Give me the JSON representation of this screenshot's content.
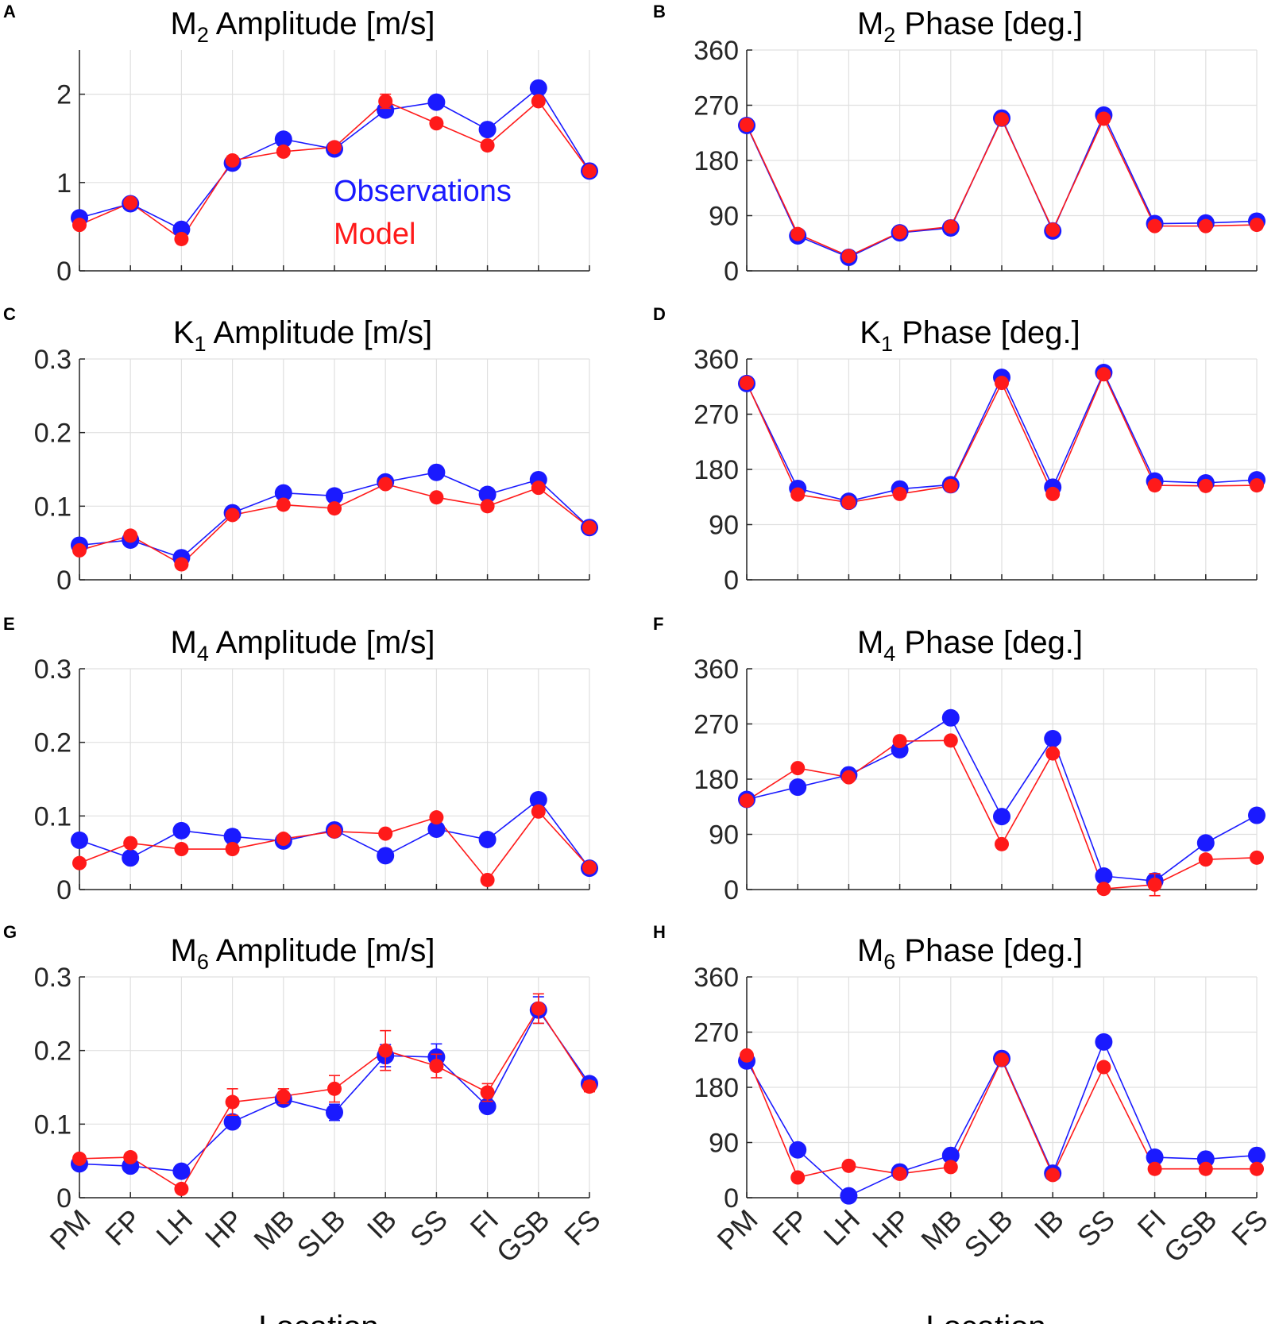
{
  "figure": {
    "legend": {
      "observations_label": "Observations",
      "model_label": "Model"
    },
    "colors": {
      "observations": "#1a1aff",
      "model": "#ff1a1a",
      "grid": "#e0e0e0",
      "axis": "#262626"
    }
  },
  "chart_data": [
    {
      "panel": "A",
      "type": "line",
      "title_main": "M",
      "title_sub": "2",
      "title_rest": " Amplitude [m/s]",
      "categories": [
        "PM",
        "FP",
        "LH",
        "HP",
        "MB",
        "SLB",
        "IB",
        "SS",
        "FI",
        "GSB",
        "FS"
      ],
      "ylim": [
        0,
        2.5
      ],
      "yticks": [
        0,
        1,
        2
      ],
      "ytick_labels": [
        "0",
        "1",
        "2"
      ],
      "xlabel": "",
      "series": [
        {
          "name": "Observations",
          "values": [
            0.6,
            0.76,
            0.47,
            1.22,
            1.49,
            1.38,
            1.82,
            1.91,
            1.6,
            2.07,
            1.13
          ],
          "err": [
            0,
            0,
            0,
            0,
            0,
            0,
            0,
            0,
            0,
            0,
            0
          ]
        },
        {
          "name": "Model",
          "values": [
            0.52,
            0.77,
            0.36,
            1.25,
            1.35,
            1.4,
            1.92,
            1.67,
            1.42,
            1.92,
            1.13
          ],
          "err": [
            0,
            0,
            0,
            0.05,
            0,
            0,
            0.08,
            0,
            0,
            0,
            0
          ]
        }
      ],
      "legend_shown": true
    },
    {
      "panel": "B",
      "type": "line",
      "title_main": "M",
      "title_sub": "2",
      "title_rest": " Phase [deg.]",
      "categories": [
        "PM",
        "FP",
        "LH",
        "HP",
        "MB",
        "SLB",
        "IB",
        "SS",
        "FI",
        "GSB",
        "FS"
      ],
      "ylim": [
        0,
        360
      ],
      "yticks": [
        0,
        90,
        180,
        270,
        360
      ],
      "ytick_labels": [
        "0",
        "90",
        "180",
        "270",
        "360"
      ],
      "xlabel": "",
      "series": [
        {
          "name": "Observations",
          "values": [
            237,
            57,
            22,
            62,
            70,
            249,
            65,
            254,
            77,
            78,
            81
          ],
          "err": [
            0,
            0,
            0,
            0,
            0,
            0,
            0,
            0,
            0,
            0,
            0
          ]
        },
        {
          "name": "Model",
          "values": [
            238,
            60,
            24,
            63,
            72,
            247,
            67,
            248,
            73,
            73,
            75
          ],
          "err": [
            0,
            0,
            0,
            0,
            0,
            0,
            0,
            0,
            0,
            0,
            0
          ]
        }
      ]
    },
    {
      "panel": "C",
      "type": "line",
      "title_main": "K",
      "title_sub": "1",
      "title_rest": " Amplitude [m/s]",
      "categories": [
        "PM",
        "FP",
        "LH",
        "HP",
        "MB",
        "SLB",
        "IB",
        "SS",
        "FI",
        "GSB",
        "FS"
      ],
      "ylim": [
        0,
        0.3
      ],
      "yticks": [
        0,
        0.1,
        0.2,
        0.3
      ],
      "ytick_labels": [
        "0",
        "0.1",
        "0.2",
        "0.3"
      ],
      "xlabel": "",
      "series": [
        {
          "name": "Observations",
          "values": [
            0.047,
            0.054,
            0.03,
            0.091,
            0.118,
            0.114,
            0.133,
            0.146,
            0.116,
            0.136,
            0.071
          ],
          "err": [
            0,
            0,
            0,
            0,
            0,
            0,
            0,
            0,
            0,
            0,
            0
          ]
        },
        {
          "name": "Model",
          "values": [
            0.04,
            0.06,
            0.021,
            0.088,
            0.102,
            0.097,
            0.13,
            0.112,
            0.1,
            0.125,
            0.071
          ],
          "err": [
            0,
            0,
            0,
            0,
            0,
            0,
            0,
            0,
            0,
            0,
            0
          ]
        }
      ]
    },
    {
      "panel": "D",
      "type": "line",
      "title_main": "K",
      "title_sub": "1",
      "title_rest": " Phase [deg.]",
      "categories": [
        "PM",
        "FP",
        "LH",
        "HP",
        "MB",
        "SLB",
        "IB",
        "SS",
        "FI",
        "GSB",
        "FS"
      ],
      "ylim": [
        0,
        360
      ],
      "yticks": [
        0,
        90,
        180,
        270,
        360
      ],
      "ytick_labels": [
        "0",
        "90",
        "180",
        "270",
        "360"
      ],
      "xlabel": "",
      "series": [
        {
          "name": "Observations",
          "values": [
            320,
            149,
            128,
            148,
            155,
            330,
            151,
            338,
            161,
            158,
            163
          ],
          "err": [
            0,
            0,
            0,
            0,
            0,
            0,
            0,
            0,
            0,
            0,
            0
          ]
        },
        {
          "name": "Model",
          "values": [
            321,
            139,
            126,
            140,
            153,
            321,
            140,
            335,
            154,
            153,
            154
          ],
          "err": [
            0,
            0,
            0,
            0,
            0,
            0,
            0,
            0,
            0,
            0,
            0
          ]
        }
      ]
    },
    {
      "panel": "E",
      "type": "line",
      "title_main": "M",
      "title_sub": "4",
      "title_rest": " Amplitude [m/s]",
      "categories": [
        "PM",
        "FP",
        "LH",
        "HP",
        "MB",
        "SLB",
        "IB",
        "SS",
        "FI",
        "GSB",
        "FS"
      ],
      "ylim": [
        0,
        0.3
      ],
      "yticks": [
        0,
        0.1,
        0.2,
        0.3
      ],
      "ytick_labels": [
        "0",
        "0.1",
        "0.2",
        "0.3"
      ],
      "xlabel": "",
      "series": [
        {
          "name": "Observations",
          "values": [
            0.067,
            0.043,
            0.08,
            0.072,
            0.066,
            0.081,
            0.046,
            0.082,
            0.068,
            0.122,
            0.029
          ],
          "err": [
            0,
            0,
            0,
            0.009,
            0,
            0,
            0,
            0,
            0,
            0,
            0
          ]
        },
        {
          "name": "Model",
          "values": [
            0.036,
            0.063,
            0.055,
            0.055,
            0.069,
            0.079,
            0.076,
            0.098,
            0.013,
            0.106,
            0.03
          ],
          "err": [
            0,
            0,
            0,
            0,
            0,
            0,
            0,
            0,
            0,
            0,
            0
          ]
        }
      ]
    },
    {
      "panel": "F",
      "type": "line",
      "title_main": "M",
      "title_sub": "4",
      "title_rest": " Phase [deg.]",
      "categories": [
        "PM",
        "FP",
        "LH",
        "HP",
        "MB",
        "SLB",
        "IB",
        "SS",
        "FI",
        "GSB",
        "FS"
      ],
      "ylim": [
        0,
        360
      ],
      "yticks": [
        0,
        90,
        180,
        270,
        360
      ],
      "ytick_labels": [
        "0",
        "90",
        "180",
        "270",
        "360"
      ],
      "xlabel": "",
      "series": [
        {
          "name": "Observations",
          "values": [
            147,
            167,
            187,
            228,
            280,
            119,
            246,
            22,
            14,
            76,
            121
          ],
          "err": [
            0,
            0,
            0,
            0,
            0,
            0,
            0,
            0,
            0,
            0,
            0
          ]
        },
        {
          "name": "Model",
          "values": [
            145,
            198,
            183,
            242,
            243,
            74,
            222,
            1,
            8,
            49,
            52
          ],
          "err": [
            0,
            0,
            0,
            0,
            0,
            0,
            0,
            0,
            18,
            0,
            0
          ]
        }
      ]
    },
    {
      "panel": "G",
      "type": "line",
      "title_main": "M",
      "title_sub": "6",
      "title_rest": " Amplitude [m/s]",
      "categories": [
        "PM",
        "FP",
        "LH",
        "HP",
        "MB",
        "SLB",
        "IB",
        "SS",
        "FI",
        "GSB",
        "FS"
      ],
      "ylim": [
        0,
        0.3
      ],
      "yticks": [
        0,
        0.1,
        0.2,
        0.3
      ],
      "ytick_labels": [
        "0",
        "0.1",
        "0.2",
        "0.3"
      ],
      "xlabel": "Location",
      "series": [
        {
          "name": "Observations",
          "values": [
            0.046,
            0.043,
            0.036,
            0.103,
            0.134,
            0.116,
            0.193,
            0.191,
            0.124,
            0.255,
            0.155
          ],
          "err": [
            0,
            0,
            0,
            0.008,
            0.008,
            0.011,
            0.015,
            0.018,
            0.006,
            0.018,
            0.008
          ]
        },
        {
          "name": "Model",
          "values": [
            0.053,
            0.055,
            0.012,
            0.13,
            0.138,
            0.148,
            0.2,
            0.179,
            0.143,
            0.257,
            0.151
          ],
          "err": [
            0,
            0,
            0,
            0.018,
            0.01,
            0.018,
            0.027,
            0.016,
            0.012,
            0.02,
            0.007
          ]
        }
      ]
    },
    {
      "panel": "H",
      "type": "line",
      "title_main": "M",
      "title_sub": "6",
      "title_rest": " Phase [deg.]",
      "categories": [
        "PM",
        "FP",
        "LH",
        "HP",
        "MB",
        "SLB",
        "IB",
        "SS",
        "FI",
        "GSB",
        "FS"
      ],
      "ylim": [
        0,
        360
      ],
      "yticks": [
        0,
        90,
        180,
        270,
        360
      ],
      "ytick_labels": [
        "0",
        "90",
        "180",
        "270",
        "360"
      ],
      "xlabel": "Location",
      "series": [
        {
          "name": "Observations",
          "values": [
            223,
            78,
            3,
            42,
            69,
            227,
            40,
            254,
            66,
            63,
            69
          ],
          "err": [
            0,
            0,
            0,
            0,
            0,
            0,
            0,
            0,
            0,
            0,
            0
          ]
        },
        {
          "name": "Model",
          "values": [
            232,
            33,
            52,
            39,
            50,
            225,
            37,
            213,
            47,
            47,
            47
          ],
          "err": [
            0,
            0,
            0,
            0,
            0,
            0,
            0,
            0,
            0,
            0,
            0
          ]
        }
      ]
    }
  ]
}
